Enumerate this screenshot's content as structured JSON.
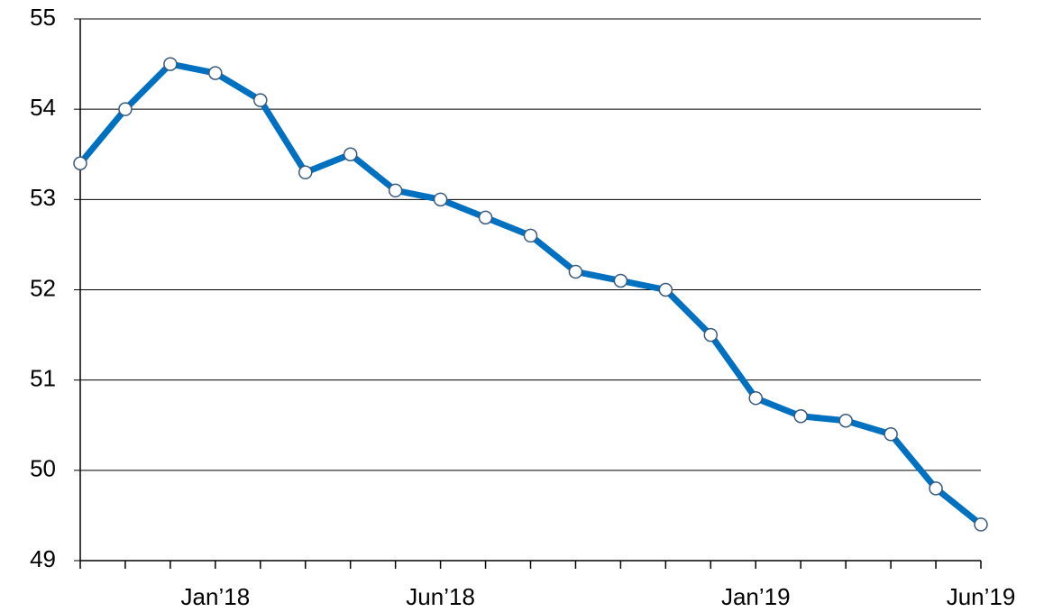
{
  "chart_data": {
    "type": "line",
    "categories": [
      null,
      null,
      null,
      "Jan’18",
      null,
      null,
      null,
      null,
      "Jun’18",
      null,
      null,
      null,
      null,
      null,
      null,
      "Jan’19",
      null,
      null,
      null,
      null,
      "Jun’19"
    ],
    "series": [
      {
        "color": "#0070c0",
        "values": [
          53.4,
          54.0,
          54.5,
          54.4,
          54.1,
          53.3,
          53.5,
          53.1,
          53.0,
          52.8,
          52.6,
          52.2,
          52.1,
          52.0,
          51.5,
          50.8,
          50.6,
          50.55,
          50.4,
          49.8,
          49.4
        ]
      }
    ],
    "ylim": [
      49,
      55
    ],
    "yticks": [
      49,
      50,
      51,
      52,
      53,
      54,
      55
    ],
    "grid": true
  }
}
